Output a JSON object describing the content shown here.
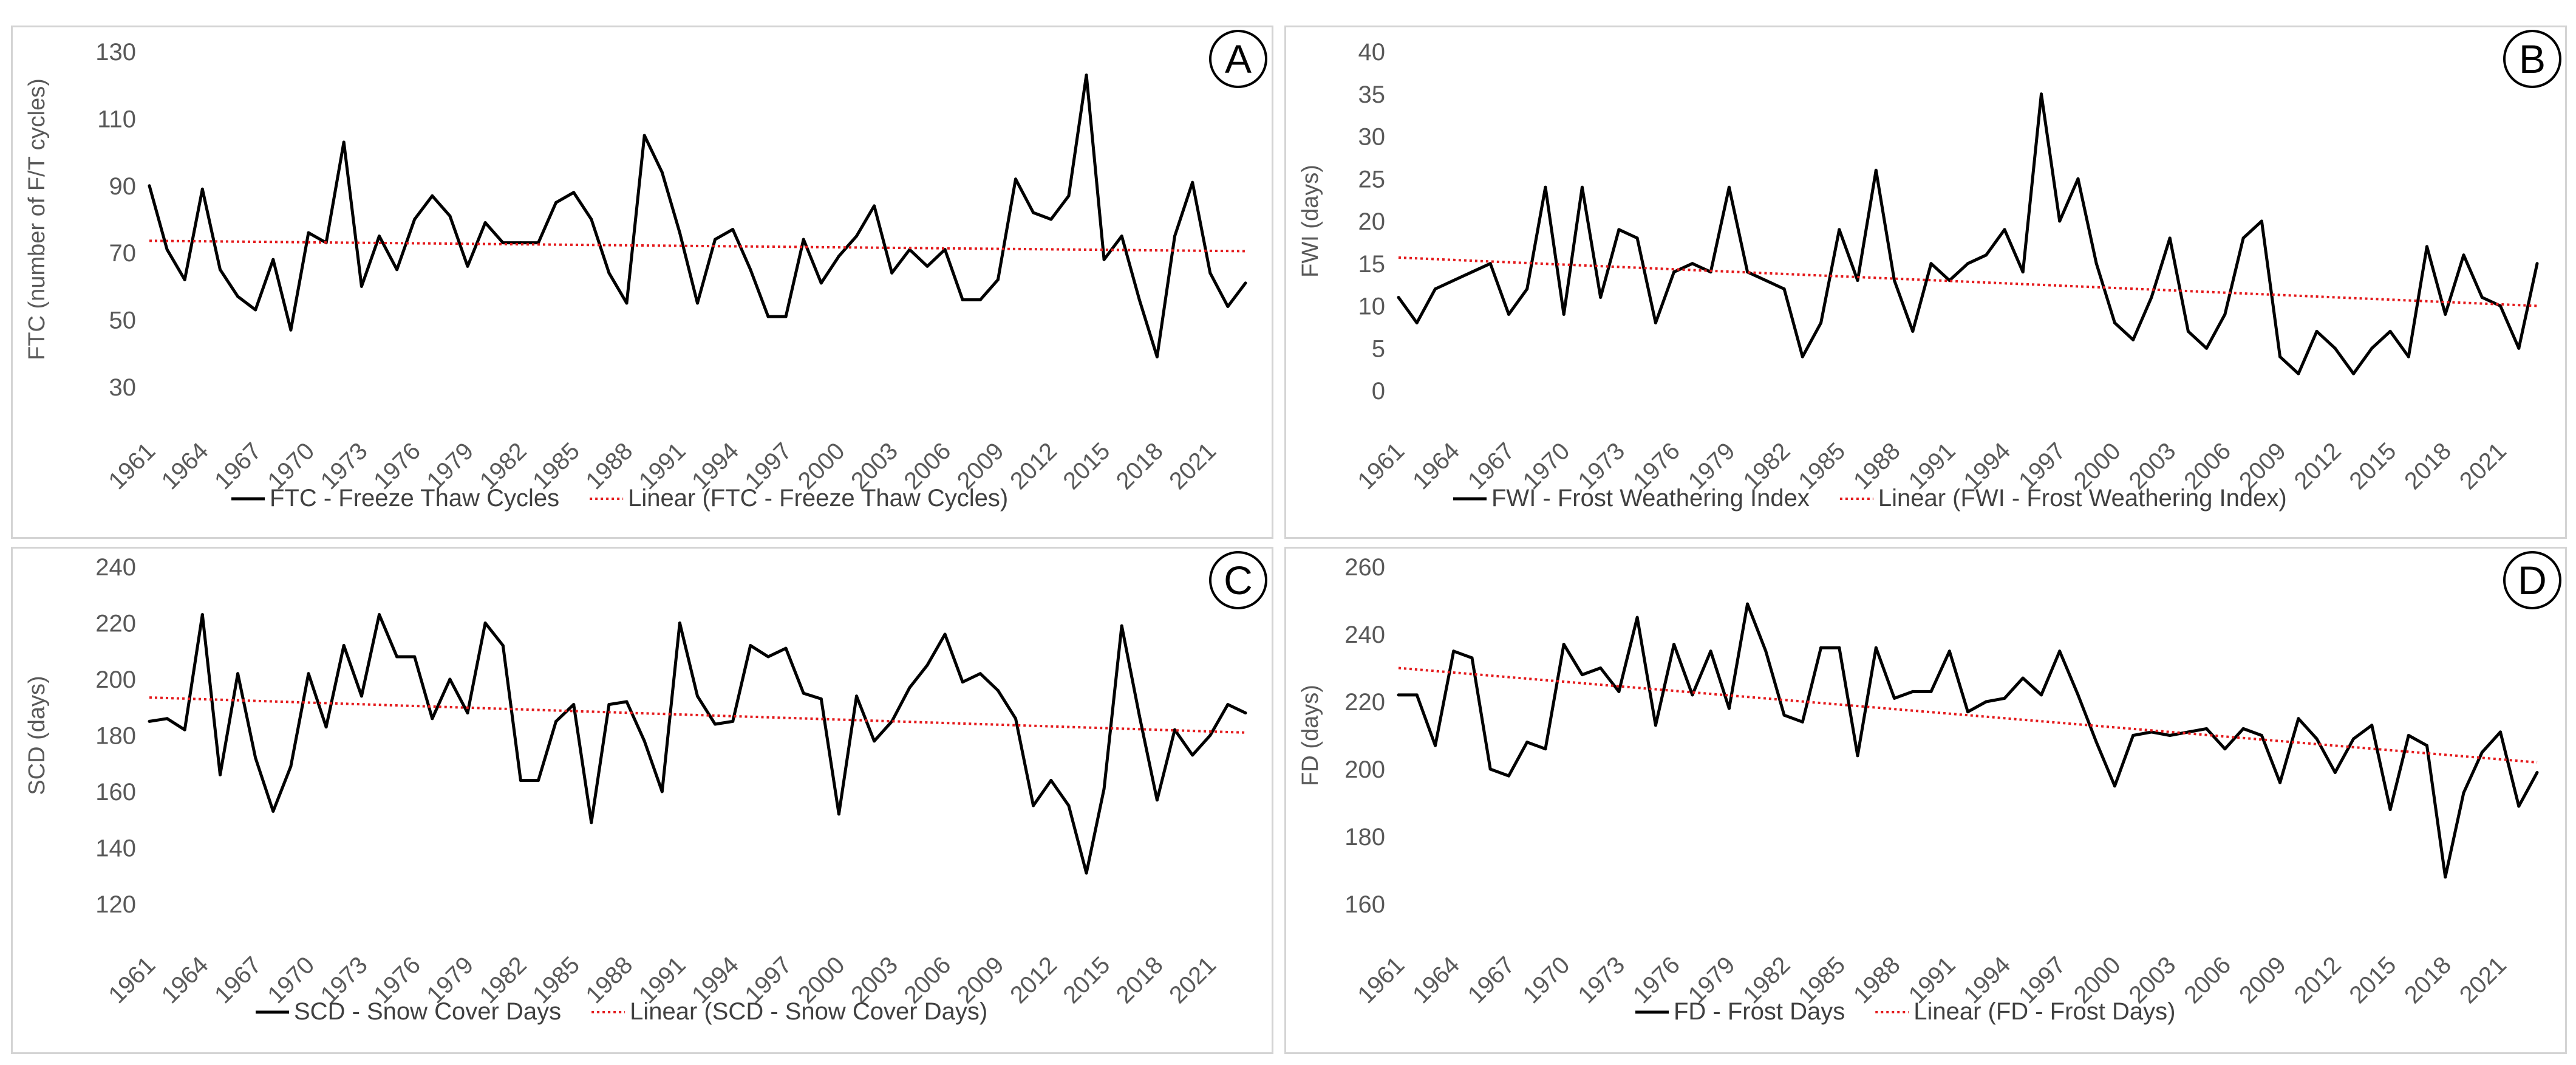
{
  "chart_data": [
    {
      "id": "A",
      "type": "line",
      "badge": "A",
      "ylabel": "FTC (number of F/T cycles)",
      "ylim": [
        30,
        130
      ],
      "yticks": [
        30,
        50,
        70,
        90,
        110,
        130
      ],
      "x_start": 1961,
      "xtick_labels": [
        "1961",
        "1964",
        "1967",
        "1970",
        "1973",
        "1976",
        "1979",
        "1982",
        "1985",
        "1988",
        "1991",
        "1994",
        "1997",
        "2000",
        "2003",
        "2006",
        "2009",
        "2012",
        "2015",
        "2018",
        "2021"
      ],
      "series": [
        {
          "name": "FTC - Freeze Thaw Cycles",
          "color": "#000000",
          "values": [
            90,
            71,
            62,
            89,
            65,
            57,
            53,
            68,
            47,
            76,
            73,
            103,
            60,
            75,
            65,
            80,
            87,
            81,
            66,
            79,
            73,
            73,
            73,
            85,
            88,
            80,
            64,
            55,
            105,
            94,
            76,
            55,
            74,
            77,
            65,
            51,
            51,
            74,
            61,
            69,
            75,
            84,
            64,
            71,
            66,
            71,
            56,
            56,
            62,
            92,
            82,
            80,
            87,
            123,
            68,
            75,
            56,
            39,
            75,
            91,
            64,
            54,
            61
          ]
        },
        {
          "name": "Linear (FTC - Freeze Thaw Cycles)",
          "color": "#e41a1c",
          "dotted": true,
          "line": [
            73.6,
            70.5
          ]
        }
      ]
    },
    {
      "id": "B",
      "type": "line",
      "badge": "B",
      "ylabel": "FWI (days)",
      "ylim": [
        0,
        40
      ],
      "yticks": [
        0,
        5,
        10,
        15,
        20,
        25,
        30,
        35,
        40
      ],
      "x_start": 1961,
      "xtick_labels": [
        "1961",
        "1964",
        "1967",
        "1970",
        "1973",
        "1976",
        "1979",
        "1982",
        "1985",
        "1988",
        "1991",
        "1994",
        "1997",
        "2000",
        "2003",
        "2006",
        "2009",
        "2012",
        "2015",
        "2018",
        "2021"
      ],
      "series": [
        {
          "name": "FWI - Frost Weathering Index",
          "color": "#000000",
          "values": [
            11,
            8,
            12,
            13,
            14,
            15,
            9,
            12,
            24,
            9,
            24,
            11,
            19,
            18,
            8,
            14,
            15,
            14,
            24,
            14,
            13,
            12,
            4,
            8,
            19,
            13,
            26,
            13,
            7,
            15,
            13,
            15,
            16,
            19,
            14,
            35,
            20,
            25,
            15,
            8,
            6,
            11,
            18,
            7,
            5,
            9,
            18,
            20,
            4,
            2,
            7,
            5,
            2,
            5,
            7,
            4,
            17,
            9,
            16,
            11,
            10,
            5,
            15
          ]
        },
        {
          "name": "Linear (FWI - Frost Weathering Index)",
          "color": "#e41a1c",
          "dotted": true,
          "line": [
            15.7,
            10.0
          ]
        }
      ]
    },
    {
      "id": "C",
      "type": "line",
      "badge": "C",
      "ylabel": "SCD (days)",
      "ylim": [
        120,
        240
      ],
      "yticks": [
        120,
        140,
        160,
        180,
        200,
        220,
        240
      ],
      "x_start": 1961,
      "xtick_labels": [
        "1961",
        "1964",
        "1967",
        "1970",
        "1973",
        "1976",
        "1979",
        "1982",
        "1985",
        "1988",
        "1991",
        "1994",
        "1997",
        "2000",
        "2003",
        "2006",
        "2009",
        "2012",
        "2015",
        "2018",
        "2021"
      ],
      "series": [
        {
          "name": "SCD - Snow Cover Days",
          "color": "#000000",
          "values": [
            185,
            186,
            182,
            223,
            166,
            202,
            172,
            153,
            169,
            202,
            183,
            212,
            194,
            223,
            208,
            208,
            186,
            200,
            188,
            220,
            212,
            164,
            164,
            185,
            191,
            149,
            191,
            192,
            178,
            160,
            220,
            194,
            184,
            185,
            212,
            208,
            211,
            195,
            193,
            152,
            194,
            178,
            185,
            197,
            205,
            216,
            199,
            202,
            196,
            186,
            155,
            164,
            155,
            131,
            161,
            219,
            187,
            157,
            182,
            173,
            180,
            191,
            188
          ]
        },
        {
          "name": "Linear (SCD - Snow Cover Days)",
          "color": "#e41a1c",
          "dotted": true,
          "line": [
            193.5,
            181.0
          ]
        }
      ]
    },
    {
      "id": "D",
      "type": "line",
      "badge": "D",
      "ylabel": "FD (days)",
      "ylim": [
        160,
        260
      ],
      "yticks": [
        160,
        180,
        200,
        220,
        240,
        260
      ],
      "x_start": 1961,
      "xtick_labels": [
        "1961",
        "1964",
        "1967",
        "1970",
        "1973",
        "1976",
        "1979",
        "1982",
        "1985",
        "1988",
        "1991",
        "1994",
        "1997",
        "2000",
        "2003",
        "2006",
        "2009",
        "2012",
        "2015",
        "2018",
        "2021"
      ],
      "series": [
        {
          "name": "FD - Frost Days",
          "color": "#000000",
          "values": [
            222,
            222,
            207,
            235,
            233,
            200,
            198,
            208,
            206,
            237,
            228,
            230,
            223,
            245,
            213,
            237,
            222,
            235,
            218,
            249,
            235,
            216,
            214,
            236,
            236,
            204,
            236,
            221,
            223,
            223,
            235,
            217,
            220,
            221,
            227,
            222,
            235,
            222,
            208,
            195,
            210,
            211,
            210,
            211,
            212,
            206,
            212,
            210,
            196,
            215,
            209,
            199,
            209,
            213,
            188,
            210,
            207,
            168,
            193,
            205,
            211,
            189,
            199
          ]
        },
        {
          "name": "Linear (FD - Frost Days)",
          "color": "#e41a1c",
          "dotted": true,
          "line": [
            230.0,
            202.0
          ]
        }
      ]
    }
  ]
}
